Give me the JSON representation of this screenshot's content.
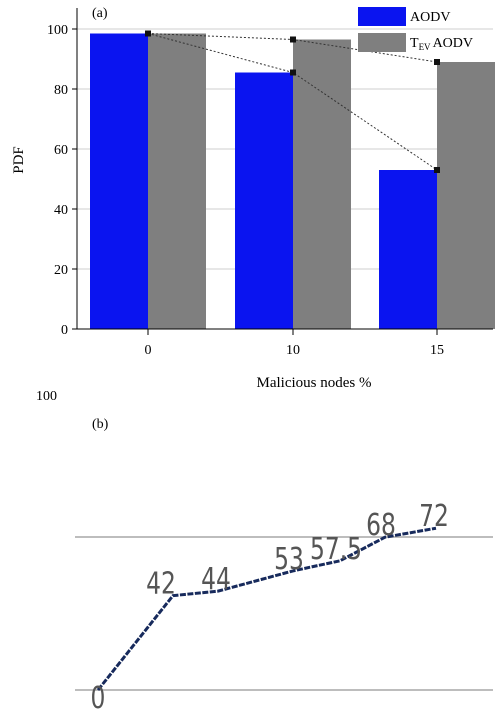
{
  "colors": {
    "aodv": "#0a14f0",
    "tev": "#7f7f7f",
    "line_a": "#333333",
    "line_b": "#172a5c",
    "grid": "#bdbdbd"
  },
  "chart_data": [
    {
      "type": "bar",
      "panel_label": "(a)",
      "categories": [
        "0",
        "10",
        "15"
      ],
      "series": [
        {
          "name": "AODV",
          "values": [
            98.5,
            85.5,
            53
          ],
          "color": "#0a14f0"
        },
        {
          "name": "AODV",
          "name_prefix": "T",
          "name_subscript": "EV",
          "values": [
            98.5,
            96.5,
            89
          ],
          "color": "#7f7f7f"
        }
      ],
      "xlabel": "Malicious nodes %",
      "ylabel": "PDF",
      "ylim": [
        0,
        100
      ],
      "yticks": [
        "0",
        "20",
        "40",
        "60",
        "80",
        "100"
      ],
      "grid": true,
      "legend": "top-right"
    },
    {
      "type": "line",
      "panel_label": "(b)",
      "top_tick": "100",
      "values": [
        0,
        42,
        44,
        53,
        57.5,
        68,
        72
      ],
      "value_labels": [
        "0",
        "42",
        "44",
        "53",
        "57.5",
        "68",
        "72"
      ],
      "grid": true
    }
  ]
}
